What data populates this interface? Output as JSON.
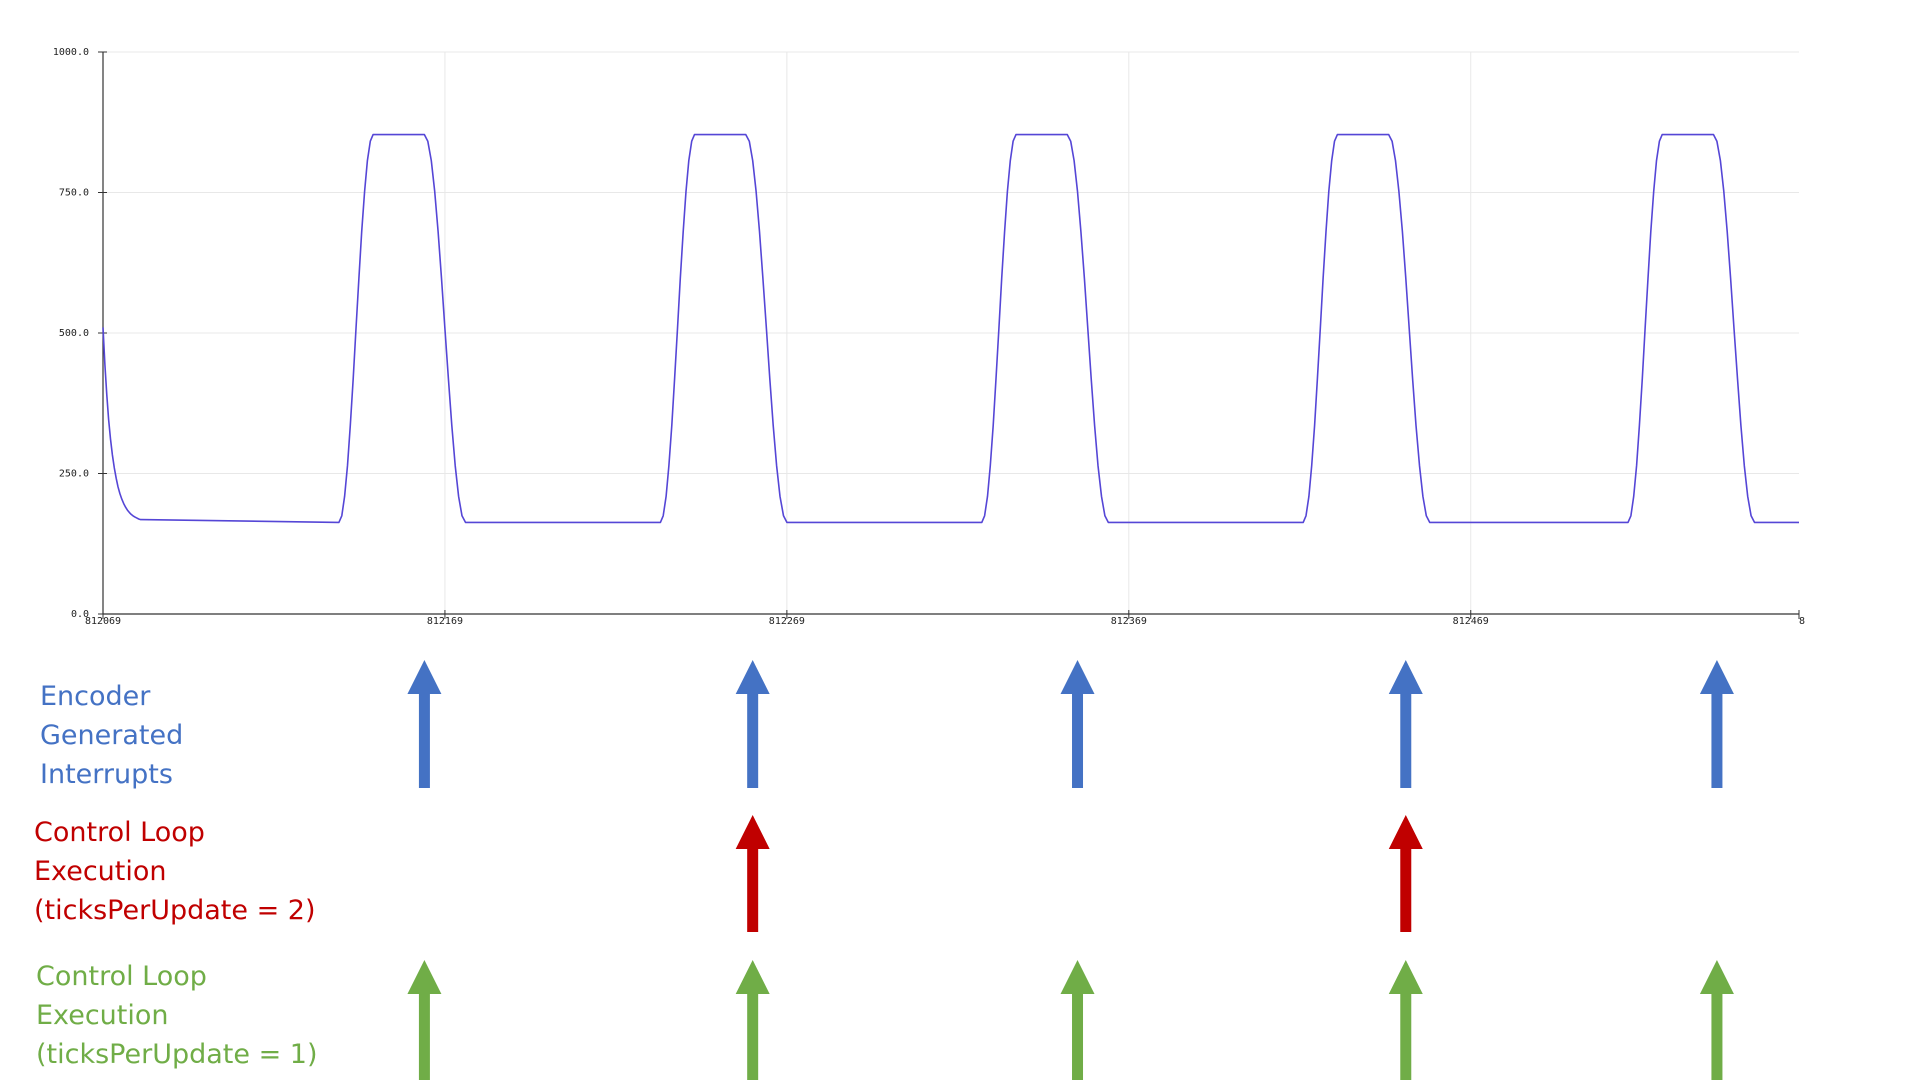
{
  "chart_data": {
    "type": "line",
    "x_ticks": [
      "812069",
      "812169",
      "812269",
      "812369",
      "812469",
      "8"
    ],
    "y_ticks": [
      "0.0",
      "250.0",
      "500.0",
      "750.0",
      "1000.0"
    ],
    "xlim": [
      812069,
      812565
    ],
    "ylim": [
      0,
      1000
    ],
    "grid": true,
    "series": [
      {
        "color": "#5546d6",
        "start": {
          "x": 812069,
          "y": 510
        },
        "initial_decay_end_x": 812080,
        "baseline": 163,
        "peak": 853,
        "pulses": [
          {
            "rise_start": 812138,
            "top_start": 812148,
            "top_end": 812163,
            "fall_end": 812175
          },
          {
            "rise_start": 812232,
            "top_start": 812242,
            "top_end": 812257,
            "fall_end": 812269
          },
          {
            "rise_start": 812326,
            "top_start": 812336,
            "top_end": 812351,
            "fall_end": 812363
          },
          {
            "rise_start": 812420,
            "top_start": 812430,
            "top_end": 812445,
            "fall_end": 812457
          },
          {
            "rise_start": 812515,
            "top_start": 812525,
            "top_end": 812540,
            "fall_end": 812552
          }
        ],
        "end_x": 812565
      }
    ]
  },
  "annotations": {
    "colors": {
      "encoder": "#4472c4",
      "control2": "#c00000",
      "control1": "#70ad47"
    },
    "rows": [
      {
        "id": "encoder",
        "lines": [
          "Encoder",
          "Generated",
          "Interrupts"
        ],
        "arrow_x": [
          812163,
          812259,
          812354,
          812450,
          812541
        ]
      },
      {
        "id": "control2",
        "lines": [
          "Control Loop",
          "Execution",
          "(ticksPerUpdate = 2)"
        ],
        "arrow_x": [
          812259,
          812450
        ]
      },
      {
        "id": "control1",
        "lines": [
          "Control Loop",
          "Execution",
          "(ticksPerUpdate = 1)"
        ],
        "arrow_x": [
          812163,
          812259,
          812354,
          812450,
          812541
        ]
      }
    ]
  }
}
